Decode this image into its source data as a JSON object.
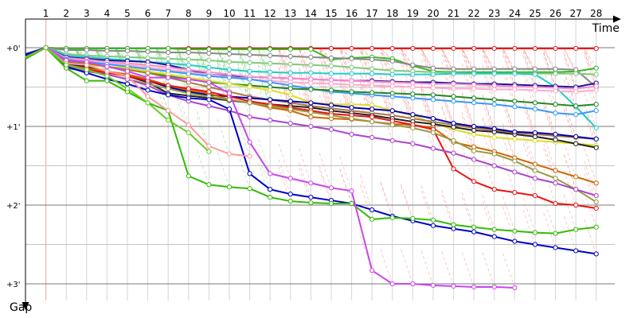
{
  "chart_data": {
    "type": "line",
    "title": "",
    "xlabel": "Time",
    "ylabel": "Gap",
    "x_ticks": [
      "1",
      "2",
      "3",
      "4",
      "5",
      "6",
      "7",
      "8",
      "9",
      "10",
      "11",
      "12",
      "13",
      "14",
      "15",
      "16",
      "17",
      "18",
      "19",
      "20",
      "21",
      "22",
      "23",
      "24",
      "25",
      "26",
      "27",
      "28"
    ],
    "y_ticks": [
      "+0'",
      "+1'",
      "+2'",
      "+3'"
    ],
    "xlim": [
      0,
      29
    ],
    "ylim": [
      0,
      3.02
    ],
    "y_unit": "minutes",
    "grid": true,
    "legend": "none",
    "series": [
      {
        "color": "#ee1111",
        "values": [
          0.14,
          0.0,
          0.01,
          0.01,
          0.01,
          0.01,
          0.01,
          0.01,
          0.01,
          0.01,
          0.01,
          0.01,
          0.01,
          0.01,
          0.01,
          0.01,
          0.01,
          0.01,
          0.01,
          0.01,
          0.01,
          0.01,
          0.01,
          0.01,
          0.01,
          0.01,
          0.01,
          0.01,
          0.01
        ]
      },
      {
        "color": "#33bb22",
        "values": [
          0.1,
          0.0,
          0.01,
          0.01,
          0.01,
          0.01,
          0.01,
          0.01,
          0.02,
          0.02,
          0.02,
          0.02,
          0.02,
          0.02,
          0.02,
          0.15,
          0.13,
          0.12,
          0.14,
          0.23,
          0.3,
          0.31,
          0.31,
          0.31,
          0.31,
          0.31,
          0.31,
          0.3,
          0.26
        ]
      },
      {
        "color": "#888888",
        "values": [
          0.12,
          0.0,
          0.03,
          0.03,
          0.04,
          0.04,
          0.05,
          0.06,
          0.06,
          0.07,
          0.08,
          0.09,
          0.1,
          0.11,
          0.12,
          0.13,
          0.14,
          0.15,
          0.17,
          0.22,
          0.26,
          0.27,
          0.27,
          0.27,
          0.27,
          0.27,
          0.27,
          0.28,
          0.5
        ]
      },
      {
        "color": "#7fc97f",
        "values": [
          0.1,
          0.0,
          0.08,
          0.1,
          0.11,
          0.12,
          0.13,
          0.14,
          0.15,
          0.16,
          0.18,
          0.19,
          0.2,
          0.21,
          0.22,
          0.23,
          0.25,
          0.27,
          0.29,
          0.3,
          0.31,
          0.32,
          0.33,
          0.33,
          0.33,
          0.33,
          0.33,
          0.33,
          0.34
        ]
      },
      {
        "color": "#22cccc",
        "values": [
          0.09,
          0.0,
          0.1,
          0.12,
          0.14,
          0.16,
          0.18,
          0.2,
          0.22,
          0.25,
          0.28,
          0.3,
          0.31,
          0.32,
          0.32,
          0.33,
          0.33,
          0.33,
          0.34,
          0.34,
          0.34,
          0.33,
          0.33,
          0.33,
          0.33,
          0.34,
          0.5,
          0.75,
          1.02
        ]
      },
      {
        "color": "#1515a0",
        "values": [
          0.08,
          0.0,
          0.12,
          0.14,
          0.16,
          0.17,
          0.18,
          0.22,
          0.28,
          0.34,
          0.36,
          0.37,
          0.38,
          0.39,
          0.4,
          0.41,
          0.42,
          0.42,
          0.43,
          0.44,
          0.44,
          0.45,
          0.46,
          0.46,
          0.47,
          0.48,
          0.49,
          0.5,
          0.45
        ]
      },
      {
        "color": "#ff88cc",
        "values": [
          0.12,
          0.0,
          0.13,
          0.15,
          0.18,
          0.2,
          0.22,
          0.25,
          0.28,
          0.31,
          0.34,
          0.37,
          0.38,
          0.39,
          0.4,
          0.41,
          0.42,
          0.43,
          0.44,
          0.45,
          0.46,
          0.46,
          0.47,
          0.48,
          0.49,
          0.5,
          0.51,
          0.52,
          0.49
        ]
      },
      {
        "color": "#ffaacc",
        "values": [
          0.12,
          0.0,
          0.14,
          0.17,
          0.19,
          0.22,
          0.25,
          0.28,
          0.31,
          0.34,
          0.37,
          0.4,
          0.42,
          0.44,
          0.45,
          0.46,
          0.47,
          0.48,
          0.49,
          0.5,
          0.51,
          0.52,
          0.52,
          0.53,
          0.53,
          0.54,
          0.55,
          0.56,
          0.54
        ]
      },
      {
        "color": "#3399ff",
        "values": [
          0.11,
          0.0,
          0.15,
          0.18,
          0.21,
          0.24,
          0.27,
          0.3,
          0.33,
          0.36,
          0.38,
          0.4,
          0.44,
          0.48,
          0.52,
          0.56,
          0.58,
          0.6,
          0.62,
          0.64,
          0.66,
          0.68,
          0.7,
          0.72,
          0.75,
          0.78,
          0.83,
          0.85,
          0.8
        ]
      },
      {
        "color": "#228822",
        "values": [
          0.1,
          0.0,
          0.16,
          0.2,
          0.24,
          0.28,
          0.32,
          0.36,
          0.4,
          0.44,
          0.46,
          0.48,
          0.5,
          0.52,
          0.53,
          0.54,
          0.56,
          0.57,
          0.58,
          0.59,
          0.6,
          0.62,
          0.64,
          0.66,
          0.68,
          0.7,
          0.72,
          0.74,
          0.72
        ]
      },
      {
        "color": "#dddd22",
        "values": [
          0.1,
          0.0,
          0.2,
          0.22,
          0.24,
          0.26,
          0.3,
          0.34,
          0.38,
          0.42,
          0.46,
          0.5,
          0.54,
          0.6,
          0.7,
          0.72,
          0.72,
          0.73,
          0.8,
          0.86,
          0.96,
          1.04,
          1.1,
          1.14,
          1.16,
          1.18,
          1.2,
          1.22,
          1.24
        ]
      },
      {
        "color": "#aa7744",
        "values": [
          0.12,
          0.0,
          0.18,
          0.2,
          0.24,
          0.28,
          0.32,
          0.38,
          0.44,
          0.5,
          0.56,
          0.62,
          0.66,
          0.7,
          0.74,
          0.77,
          0.8,
          0.83,
          0.86,
          0.9,
          0.94,
          0.98,
          1.02,
          1.05,
          1.08,
          1.1,
          1.12,
          1.14,
          1.16
        ]
      },
      {
        "color": "#222222",
        "values": [
          0.12,
          0.0,
          0.2,
          0.24,
          0.3,
          0.36,
          0.44,
          0.58,
          0.61,
          0.64,
          0.67,
          0.7,
          0.72,
          0.74,
          0.76,
          0.8,
          0.83,
          0.86,
          0.9,
          0.94,
          0.97,
          1.01,
          1.05,
          1.07,
          1.1,
          1.13,
          1.17,
          1.22,
          1.27
        ]
      },
      {
        "color": "#0000aa",
        "values": [
          0.1,
          0.0,
          0.2,
          0.26,
          0.3,
          0.36,
          0.42,
          0.5,
          0.56,
          0.6,
          0.62,
          0.64,
          0.66,
          0.68,
          0.7,
          0.73,
          0.76,
          0.78,
          0.8,
          0.85,
          0.9,
          0.96,
          1.0,
          1.03,
          1.07,
          1.08,
          1.1,
          1.13,
          1.16
        ]
      },
      {
        "color": "#cc6600",
        "values": [
          0.11,
          0.0,
          0.22,
          0.26,
          0.3,
          0.34,
          0.4,
          0.48,
          0.54,
          0.58,
          0.66,
          0.7,
          0.76,
          0.8,
          0.88,
          0.9,
          0.91,
          0.94,
          0.97,
          0.98,
          1.02,
          1.2,
          1.26,
          1.32,
          1.4,
          1.48,
          1.56,
          1.64,
          1.72
        ]
      },
      {
        "color": "#ee1111",
        "values": [
          0.11,
          0.0,
          0.24,
          0.28,
          0.32,
          0.36,
          0.42,
          0.48,
          0.52,
          0.56,
          0.62,
          0.68,
          0.72,
          0.76,
          0.8,
          0.84,
          0.86,
          0.88,
          0.93,
          0.98,
          1.04,
          1.54,
          1.7,
          1.8,
          1.84,
          1.88,
          1.98,
          2.0,
          2.04
        ]
      },
      {
        "color": "#999944",
        "values": [
          0.12,
          0.0,
          0.24,
          0.3,
          0.34,
          0.4,
          0.46,
          0.52,
          0.58,
          0.62,
          0.66,
          0.7,
          0.74,
          0.78,
          0.82,
          0.86,
          0.9,
          0.94,
          0.98,
          1.02,
          1.08,
          1.18,
          1.31,
          1.35,
          1.44,
          1.56,
          1.66,
          1.8,
          1.96
        ]
      },
      {
        "color": "#aa44cc",
        "values": [
          0.12,
          0.0,
          0.26,
          0.3,
          0.34,
          0.4,
          0.48,
          0.6,
          0.68,
          0.74,
          0.8,
          0.88,
          0.92,
          0.96,
          1.0,
          1.04,
          1.1,
          1.14,
          1.18,
          1.22,
          1.28,
          1.34,
          1.42,
          1.5,
          1.58,
          1.66,
          1.72,
          1.8,
          1.88
        ]
      },
      {
        "color": "#0000cc",
        "values": [
          0.1,
          0.0,
          0.24,
          0.32,
          0.4,
          0.46,
          0.54,
          0.6,
          0.64,
          0.66,
          0.78,
          1.6,
          1.8,
          1.86,
          1.9,
          1.94,
          1.98,
          2.06,
          2.14,
          2.2,
          2.26,
          2.3,
          2.34,
          2.4,
          2.46,
          2.5,
          2.54,
          2.58,
          2.62
        ]
      },
      {
        "color": "#33bb00",
        "values": [
          0.14,
          0.0,
          0.26,
          0.42,
          0.42,
          0.56,
          0.7,
          0.8,
          1.63,
          1.74,
          1.77,
          1.79,
          1.9,
          1.95,
          1.97,
          1.98,
          1.98,
          2.18,
          2.16,
          2.17,
          2.19,
          2.25,
          2.28,
          2.31,
          2.33,
          2.35,
          2.36,
          2.31,
          2.28
        ]
      },
      {
        "color": "#cc44ee",
        "values": [
          0.12,
          0.0,
          0.16,
          0.18,
          0.24,
          0.3,
          0.38,
          0.38,
          0.4,
          0.44,
          0.58,
          1.2,
          1.6,
          1.66,
          1.72,
          1.78,
          1.82,
          2.83,
          3.0,
          3.0,
          3.02,
          3.03,
          3.04,
          3.04,
          3.05
        ]
      },
      {
        "color": "#ff9999",
        "values": [
          0.12,
          0.0,
          0.2,
          0.22,
          0.3,
          0.36,
          0.62,
          0.8,
          0.98,
          1.25,
          1.35,
          1.38
        ]
      },
      {
        "color": "#66cc22",
        "values": [
          0.12,
          0.0,
          0.22,
          0.28,
          0.36,
          0.52,
          0.7,
          0.92,
          1.08,
          1.32
        ]
      }
    ]
  }
}
